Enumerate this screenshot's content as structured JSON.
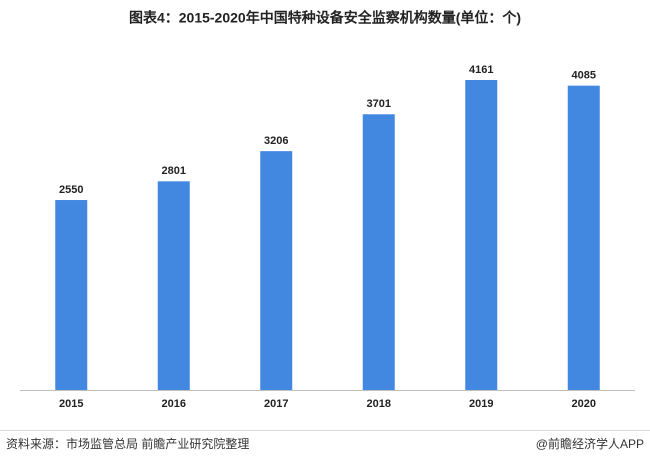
{
  "chart_data": {
    "type": "bar",
    "title": "图表4：2015-2020年中国特种设备安全监察机构数量(单位：个)",
    "categories": [
      "2015",
      "2016",
      "2017",
      "2018",
      "2019",
      "2020"
    ],
    "values": [
      2550,
      2801,
      3206,
      3701,
      4161,
      4085
    ],
    "color": "#4287e0",
    "source": "资料来源：市场监管总局 前瞻产业研究院整理",
    "footer": "@前瞻经济学人APP"
  }
}
